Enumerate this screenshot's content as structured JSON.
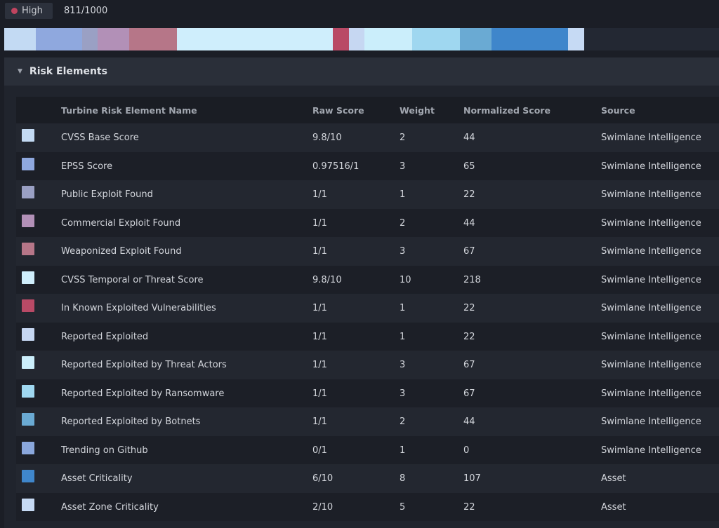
{
  "severity": {
    "label": "High",
    "color": "#c0445f"
  },
  "score_text": "811/1000",
  "section": {
    "title": "Risk Elements",
    "icon": "chevron-down-icon"
  },
  "table": {
    "headers": {
      "name": "Turbine Risk Element Name",
      "raw": "Raw Score",
      "weight": "Weight",
      "normalized": "Normalized Score",
      "source": "Source"
    },
    "rows": [
      {
        "color": "#c3daf3",
        "name": "CVSS Base Score",
        "raw": "9.8/10",
        "weight": "2",
        "normalized": "44",
        "source": "Swimlane Intelligence"
      },
      {
        "color": "#8fa8de",
        "name": "EPSS Score",
        "raw": "0.97516/1",
        "weight": "3",
        "normalized": "65",
        "source": "Swimlane Intelligence"
      },
      {
        "color": "#9aa0c4",
        "name": "Public Exploit Found",
        "raw": "1/1",
        "weight": "1",
        "normalized": "22",
        "source": "Swimlane Intelligence"
      },
      {
        "color": "#b290b7",
        "name": "Commercial Exploit Found",
        "raw": "1/1",
        "weight": "2",
        "normalized": "44",
        "source": "Swimlane Intelligence"
      },
      {
        "color": "#b67688",
        "name": "Weaponized Exploit Found",
        "raw": "1/1",
        "weight": "3",
        "normalized": "67",
        "source": "Swimlane Intelligence"
      },
      {
        "color": "#cfeefc",
        "name": "CVSS Temporal or Threat Score",
        "raw": "9.8/10",
        "weight": "10",
        "normalized": "218",
        "source": "Swimlane Intelligence"
      },
      {
        "color": "#b94a66",
        "name": "In Known Exploited Vulnerabilities",
        "raw": "1/1",
        "weight": "1",
        "normalized": "22",
        "source": "Swimlane Intelligence"
      },
      {
        "color": "#c6d7f2",
        "name": "Reported Exploited",
        "raw": "1/1",
        "weight": "1",
        "normalized": "22",
        "source": "Swimlane Intelligence"
      },
      {
        "color": "#cbeefb",
        "name": "Reported Exploited by Threat Actors",
        "raw": "1/1",
        "weight": "3",
        "normalized": "67",
        "source": "Swimlane Intelligence"
      },
      {
        "color": "#9fd7f0",
        "name": "Reported Exploited by Ransomware",
        "raw": "1/1",
        "weight": "3",
        "normalized": "67",
        "source": "Swimlane Intelligence"
      },
      {
        "color": "#6aaad3",
        "name": "Reported Exploited by Botnets",
        "raw": "1/1",
        "weight": "2",
        "normalized": "44",
        "source": "Swimlane Intelligence"
      },
      {
        "color": "#8aa7dc",
        "name": "Trending on Github",
        "raw": "0/1",
        "weight": "1",
        "normalized": "0",
        "source": "Swimlane Intelligence"
      },
      {
        "color": "#3f86cb",
        "name": "Asset Criticality",
        "raw": "6/10",
        "weight": "8",
        "normalized": "107",
        "source": "Asset"
      },
      {
        "color": "#c6daf4",
        "name": "Asset Zone Criticality",
        "raw": "2/10",
        "weight": "5",
        "normalized": "22",
        "source": "Asset"
      }
    ]
  }
}
